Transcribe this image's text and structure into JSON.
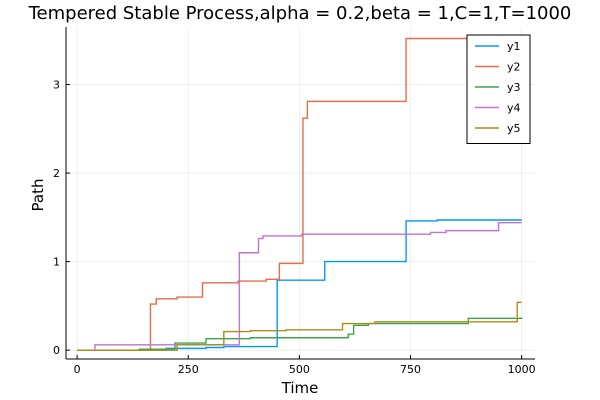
{
  "chart_data": {
    "type": "line",
    "title": "Tempered Stable Process,alpha = 0.2,beta = 1,C=1,T=1000",
    "xlabel": "Time",
    "ylabel": "Path",
    "xlim": [
      -25,
      1030
    ],
    "ylim": [
      -0.1,
      3.65
    ],
    "xticks": [
      0,
      250,
      500,
      750,
      1000
    ],
    "xtick_labels": [
      "0",
      "250",
      "500",
      "750",
      "1000"
    ],
    "yticks": [
      0,
      1,
      2,
      3
    ],
    "ytick_labels": [
      "0",
      "1",
      "2",
      "3"
    ],
    "grid": true,
    "legend_position": "top-right",
    "series": [
      {
        "name": "y1",
        "color": "#009AFA",
        "x": [
          0,
          200,
          290,
          330,
          450,
          557,
          740,
          810,
          1000
        ],
        "y": [
          0.0,
          0.02,
          0.03,
          0.04,
          0.79,
          1.0,
          1.46,
          1.47,
          1.47
        ]
      },
      {
        "name": "y2",
        "color": "#E36F47",
        "x": [
          0,
          165,
          178,
          225,
          282,
          362,
          425,
          455,
          508,
          518,
          740,
          1000
        ],
        "y": [
          0.0,
          0.52,
          0.58,
          0.6,
          0.76,
          0.78,
          0.8,
          0.98,
          2.62,
          2.81,
          3.52,
          3.52
        ]
      },
      {
        "name": "y3",
        "color": "#3EA44E",
        "x": [
          0,
          140,
          220,
          290,
          345,
          390,
          610,
          622,
          655,
          880,
          1000
        ],
        "y": [
          0.0,
          0.01,
          0.08,
          0.13,
          0.13,
          0.14,
          0.18,
          0.28,
          0.3,
          0.36,
          0.37
        ]
      },
      {
        "name": "y4",
        "color": "#C371D2",
        "x": [
          0,
          40,
          365,
          408,
          418,
          505,
          795,
          830,
          948,
          1000
        ],
        "y": [
          0.0,
          0.06,
          1.1,
          1.26,
          1.29,
          1.31,
          1.33,
          1.35,
          1.44,
          1.44
        ]
      },
      {
        "name": "y5",
        "color": "#AC8D18",
        "x": [
          0,
          225,
          330,
          390,
          470,
          597,
          670,
          990,
          1000
        ],
        "y": [
          0.0,
          0.06,
          0.21,
          0.22,
          0.23,
          0.3,
          0.32,
          0.54,
          0.54
        ]
      }
    ]
  }
}
